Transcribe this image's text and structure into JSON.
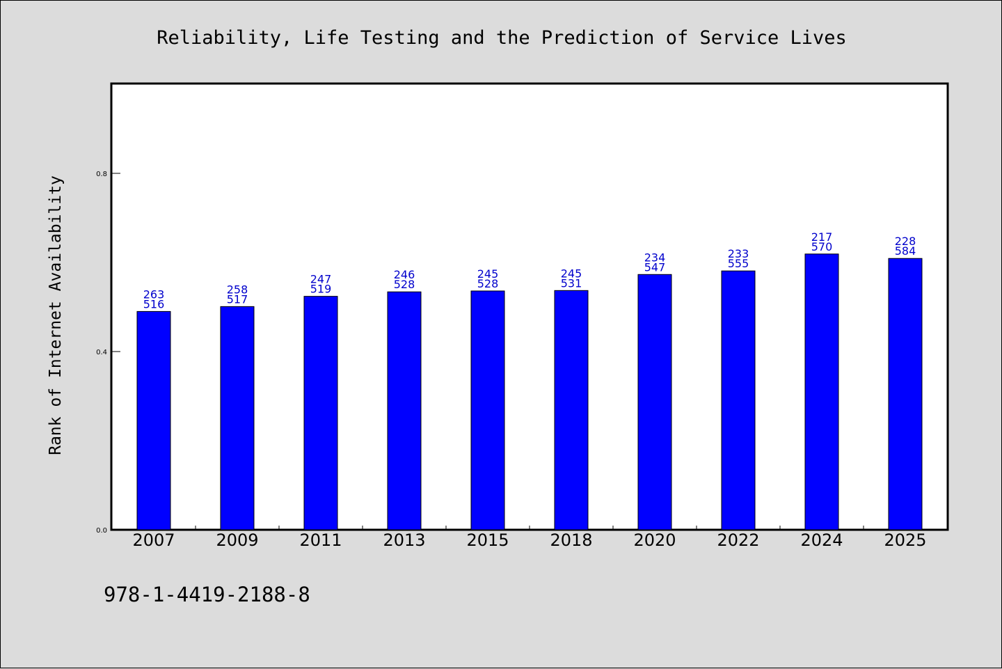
{
  "chart_data": {
    "type": "bar",
    "title": "Reliability, Life Testing and the Prediction of Service Lives",
    "ylabel": "Rank of Internet Availability",
    "xlabel": "",
    "categories": [
      "2007",
      "2009",
      "2011",
      "2013",
      "2015",
      "2018",
      "2020",
      "2022",
      "2024",
      "2025"
    ],
    "values": [
      0.49,
      0.501,
      0.524,
      0.534,
      0.536,
      0.537,
      0.573,
      0.581,
      0.619,
      0.609
    ],
    "data_labels": [
      [
        "263",
        "516"
      ],
      [
        "258",
        "517"
      ],
      [
        "247",
        "519"
      ],
      [
        "246",
        "528"
      ],
      [
        "245",
        "528"
      ],
      [
        "245",
        "531"
      ],
      [
        "234",
        "547"
      ],
      [
        "233",
        "555"
      ],
      [
        "217",
        "570"
      ],
      [
        "228",
        "584"
      ]
    ],
    "yticks": [
      "0.0",
      "0.4",
      "0.8"
    ],
    "ytick_values": [
      0.0,
      0.4,
      0.8
    ],
    "ylim": [
      0,
      1.0
    ],
    "bar_color": "#0000ff",
    "label_color": "#0000cc",
    "grid": false,
    "legend": "none"
  },
  "footer": "978-1-4419-2188-8"
}
